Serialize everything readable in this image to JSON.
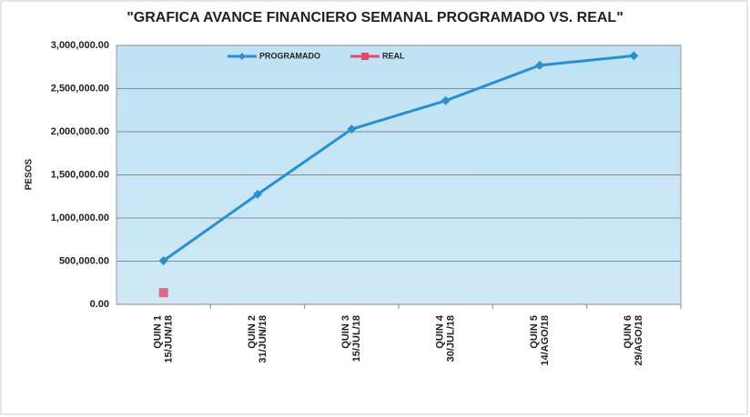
{
  "chart_data": {
    "type": "line",
    "title": "\"GRAFICA AVANCE FINANCIERO  SEMANAL PROGRAMADO VS. REAL\"",
    "y_label": "PESOS",
    "categories": [
      [
        "QUIN 1",
        "15/JUN/18"
      ],
      [
        "QUIN 2",
        "31/JUN/18"
      ],
      [
        "QUIN 3",
        "15/JUL/18"
      ],
      [
        "QUIN 4",
        "30/JUL/18"
      ],
      [
        "QUIN 5",
        "14/AGO/18"
      ],
      [
        "QUIN 6",
        "29/AGO/18"
      ]
    ],
    "series": [
      {
        "name": "PROGRAMADO",
        "color": "#2a8fd0",
        "marker": "diamond",
        "values": [
          505000,
          1275000,
          2030000,
          2360000,
          2770000,
          2880000
        ]
      },
      {
        "name": "REAL",
        "color": "#e04a6a",
        "marker": "square",
        "values": [
          135000,
          null,
          null,
          null,
          null,
          null
        ]
      }
    ],
    "ylim": [
      0,
      3000000
    ],
    "yticks": [
      {
        "value": 0,
        "label": "0.00"
      },
      {
        "value": 500000,
        "label": "500,000.00"
      },
      {
        "value": 1000000,
        "label": "1,000,000.00"
      },
      {
        "value": 1500000,
        "label": "1,500,000.00"
      },
      {
        "value": 2000000,
        "label": "2,000,000.00"
      },
      {
        "value": 2500000,
        "label": "2,500,000.00"
      },
      {
        "value": 3000000,
        "label": "3,000,000.00"
      }
    ],
    "grid": true,
    "legend": "top"
  }
}
